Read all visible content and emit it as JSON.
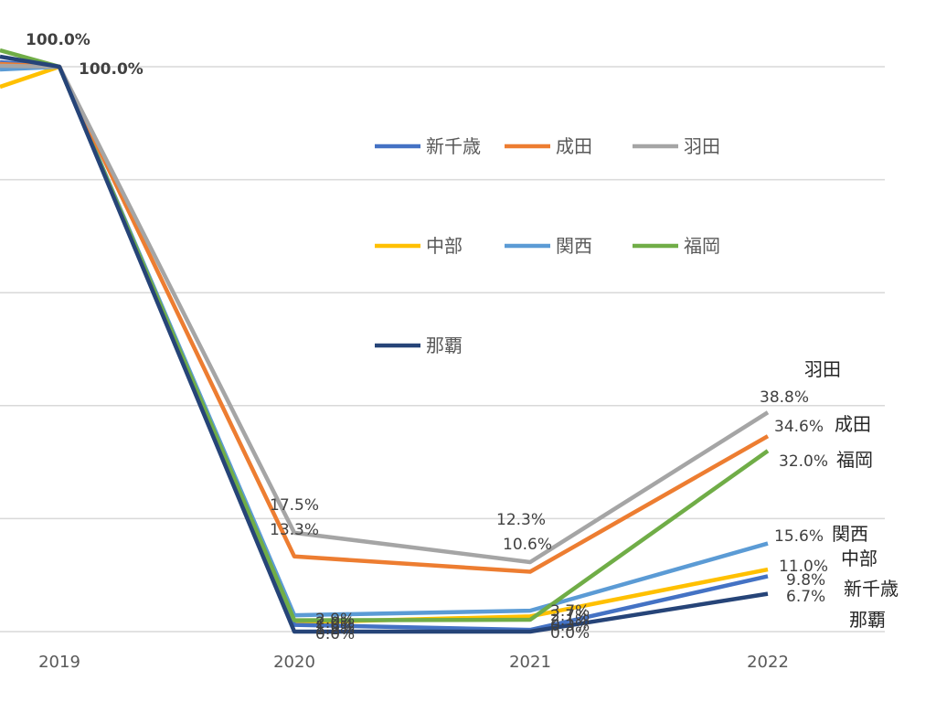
{
  "chart_data": {
    "type": "line",
    "x": [
      "2019",
      "2020",
      "2021",
      "2022"
    ],
    "ylim": [
      0,
      100
    ],
    "grid": true,
    "legend_position": "inside-top-center",
    "series": [
      {
        "name": "新千歳",
        "color": "#4472C4",
        "values": [
          100,
          1.2,
          0.3,
          9.8
        ]
      },
      {
        "name": "成田",
        "color": "#ED7D31",
        "values": [
          100,
          13.3,
          10.6,
          34.6
        ]
      },
      {
        "name": "羽田",
        "color": "#A5A5A5",
        "values": [
          100,
          17.5,
          12.3,
          38.8
        ]
      },
      {
        "name": "中部",
        "color": "#FFC000",
        "values": [
          100,
          1.6,
          2.7,
          11.0
        ]
      },
      {
        "name": "関西",
        "color": "#5B9BD5",
        "values": [
          100,
          2.9,
          3.7,
          15.6
        ]
      },
      {
        "name": "福岡",
        "color": "#70AD47",
        "values": [
          100,
          2.0,
          2.1,
          32.0
        ]
      },
      {
        "name": "那覇",
        "color": "#264478",
        "values": [
          100,
          0.0,
          0.0,
          6.7
        ]
      }
    ],
    "data_labels": {
      "2019": [
        "100.0%",
        "100.0%"
      ],
      "2020": [
        "17.5%",
        "13.3%",
        "2.9%",
        "2.0%",
        "1.6%",
        "1.2%",
        "0.0%"
      ],
      "2021": [
        "12.3%",
        "10.6%",
        "3.7%",
        "2.7%",
        "2.1%",
        "0.3%",
        "0.0%"
      ],
      "2022": [
        "38.8%",
        "34.6%",
        "32.0%",
        "15.6%",
        "11.0%",
        "9.8%",
        "6.7%"
      ]
    }
  }
}
